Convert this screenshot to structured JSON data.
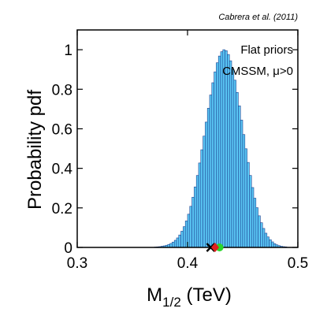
{
  "chart_data": {
    "type": "bar",
    "citation": "Cabrera et al. (2011)",
    "annotation_line1": "Flat priors",
    "annotation_line2": "CMSSM, μ>0",
    "xlabel_main": "M",
    "xlabel_sub": "1/2",
    "xlabel_unit": " (TeV)",
    "ylabel": "Probability pdf",
    "xlim": [
      0.3,
      0.5
    ],
    "ylim": [
      0,
      1.1
    ],
    "x_ticks": [
      0.3,
      0.4,
      0.5
    ],
    "x_tick_labels": [
      "0.3",
      "0.4",
      "0.5"
    ],
    "y_ticks": [
      0,
      0.2,
      0.4,
      0.6,
      0.8,
      1.0
    ],
    "y_tick_labels": [
      "0",
      "0.2",
      "0.4",
      "0.6",
      "0.8",
      "1"
    ],
    "bin_width": 0.002,
    "bin_start": 0.37,
    "values": [
      0.002,
      0.003,
      0.004,
      0.006,
      0.008,
      0.011,
      0.015,
      0.02,
      0.027,
      0.036,
      0.048,
      0.063,
      0.082,
      0.105,
      0.134,
      0.168,
      0.208,
      0.254,
      0.306,
      0.364,
      0.427,
      0.494,
      0.563,
      0.634,
      0.704,
      0.771,
      0.833,
      0.888,
      0.934,
      0.968,
      0.99,
      1.0,
      0.995,
      0.976,
      0.944,
      0.9,
      0.846,
      0.784,
      0.716,
      0.644,
      0.571,
      0.499,
      0.43,
      0.364,
      0.303,
      0.249,
      0.201,
      0.16,
      0.125,
      0.096,
      0.072,
      0.053,
      0.039,
      0.028,
      0.019,
      0.013,
      0.009,
      0.006,
      0.004,
      0.003
    ],
    "bar_color": "#5bc8f5",
    "bar_edge_color": "#1a3f8f",
    "markers": [
      {
        "name": "best-fit",
        "symbol": "cross",
        "x": 0.421,
        "color": "#000000"
      },
      {
        "name": "median",
        "symbol": "dot",
        "x": 0.429,
        "color": "#2bd62b"
      },
      {
        "name": "mean",
        "symbol": "diamond",
        "x": 0.425,
        "color": "#e0201f"
      }
    ]
  }
}
